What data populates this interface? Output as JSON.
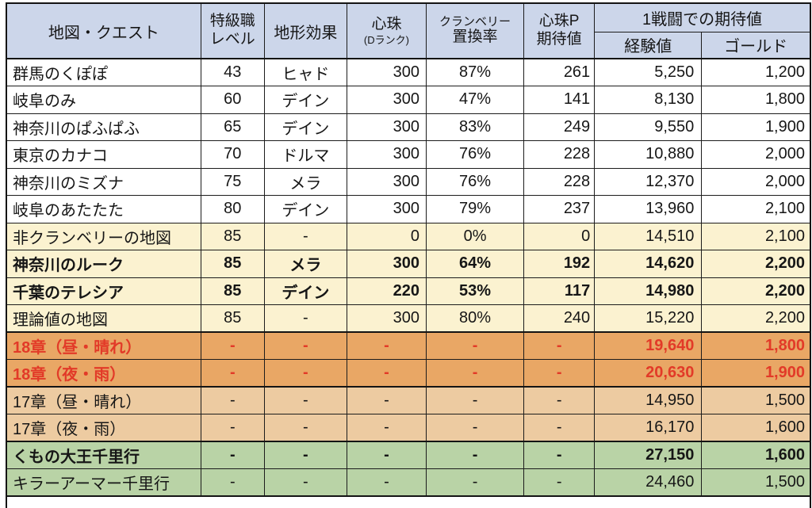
{
  "colors": {
    "header_bg": "#ccd6ea",
    "row_white": "#ffffff",
    "row_cream": "#fbf2d0",
    "row_orange_dark": "#e9a765",
    "row_orange_light": "#edcba1",
    "row_green": "#b9d3a6",
    "red_text": "#e23a28",
    "border": "#1c1c1c"
  },
  "table": {
    "headers": {
      "map_quest": "地図・クエスト",
      "level_line1": "特級職",
      "level_line2": "レベル",
      "terrain": "地形効果",
      "pearl_line1": "心珠",
      "pearl_line2": "(Dランク)",
      "rate_line1": "クランベリー",
      "rate_line2": "置換率",
      "pearl_p_line1": "心珠P",
      "pearl_p_line2": "期待値",
      "battle_group": "1戦闘での期待値",
      "exp": "経験値",
      "gold": "ゴールド"
    },
    "rows": [
      {
        "name": "群馬のくぽぽ",
        "level": "43",
        "terrain": "ヒャド",
        "pearl": "300",
        "rate": "87%",
        "pearl_p": "261",
        "exp": "5,250",
        "gold": "1,200",
        "style": "white"
      },
      {
        "name": "岐阜のみ",
        "level": "60",
        "terrain": "デイン",
        "pearl": "300",
        "rate": "47%",
        "pearl_p": "141",
        "exp": "8,130",
        "gold": "1,800",
        "style": "white"
      },
      {
        "name": "神奈川のぱふぱふ",
        "level": "65",
        "terrain": "デイン",
        "pearl": "300",
        "rate": "83%",
        "pearl_p": "249",
        "exp": "9,550",
        "gold": "1,900",
        "style": "white"
      },
      {
        "name": "東京のカナコ",
        "level": "70",
        "terrain": "ドルマ",
        "pearl": "300",
        "rate": "76%",
        "pearl_p": "228",
        "exp": "10,880",
        "gold": "2,000",
        "style": "white"
      },
      {
        "name": "神奈川のミズナ",
        "level": "75",
        "terrain": "メラ",
        "pearl": "300",
        "rate": "76%",
        "pearl_p": "228",
        "exp": "12,370",
        "gold": "2,000",
        "style": "white"
      },
      {
        "name": "岐阜のあたたた",
        "level": "80",
        "terrain": "デイン",
        "pearl": "300",
        "rate": "79%",
        "pearl_p": "237",
        "exp": "13,960",
        "gold": "2,100",
        "style": "white"
      },
      {
        "name": "非クランベリーの地図",
        "level": "85",
        "terrain": "-",
        "pearl": "0",
        "rate": "0%",
        "pearl_p": "0",
        "exp": "14,510",
        "gold": "2,100",
        "style": "cream"
      },
      {
        "name": "神奈川のルーク",
        "level": "85",
        "terrain": "メラ",
        "pearl": "300",
        "rate": "64%",
        "pearl_p": "192",
        "exp": "14,620",
        "gold": "2,200",
        "style": "cream-bold"
      },
      {
        "name": "千葉のテレシア",
        "level": "85",
        "terrain": "デイン",
        "pearl": "220",
        "rate": "53%",
        "pearl_p": "117",
        "exp": "14,980",
        "gold": "2,200",
        "style": "cream-bold"
      },
      {
        "name": "理論値の地図",
        "level": "85",
        "terrain": "-",
        "pearl": "300",
        "rate": "80%",
        "pearl_p": "240",
        "exp": "15,220",
        "gold": "2,200",
        "style": "cream"
      },
      {
        "name": "18章（昼・晴れ）",
        "level": "-",
        "terrain": "-",
        "pearl": "-",
        "rate": "-",
        "pearl_p": "-",
        "exp": "19,640",
        "gold": "1,800",
        "style": "orange-red",
        "section_top": true
      },
      {
        "name": "18章（夜・雨）",
        "level": "-",
        "terrain": "-",
        "pearl": "-",
        "rate": "-",
        "pearl_p": "-",
        "exp": "20,630",
        "gold": "1,900",
        "style": "orange-red"
      },
      {
        "name": "17章（昼・晴れ）",
        "level": "-",
        "terrain": "-",
        "pearl": "-",
        "rate": "-",
        "pearl_p": "-",
        "exp": "14,950",
        "gold": "1,500",
        "style": "orange-light",
        "section_top": true
      },
      {
        "name": "17章（夜・雨）",
        "level": "-",
        "terrain": "-",
        "pearl": "-",
        "rate": "-",
        "pearl_p": "-",
        "exp": "16,170",
        "gold": "1,600",
        "style": "orange-light"
      },
      {
        "name": "くもの大王千里行",
        "level": "-",
        "terrain": "-",
        "pearl": "-",
        "rate": "-",
        "pearl_p": "-",
        "exp": "27,150",
        "gold": "1,600",
        "style": "green-bold",
        "section_top": true
      },
      {
        "name": "キラーアーマー千里行",
        "level": "-",
        "terrain": "-",
        "pearl": "-",
        "rate": "-",
        "pearl_p": "-",
        "exp": "24,460",
        "gold": "1,500",
        "style": "green"
      }
    ]
  }
}
